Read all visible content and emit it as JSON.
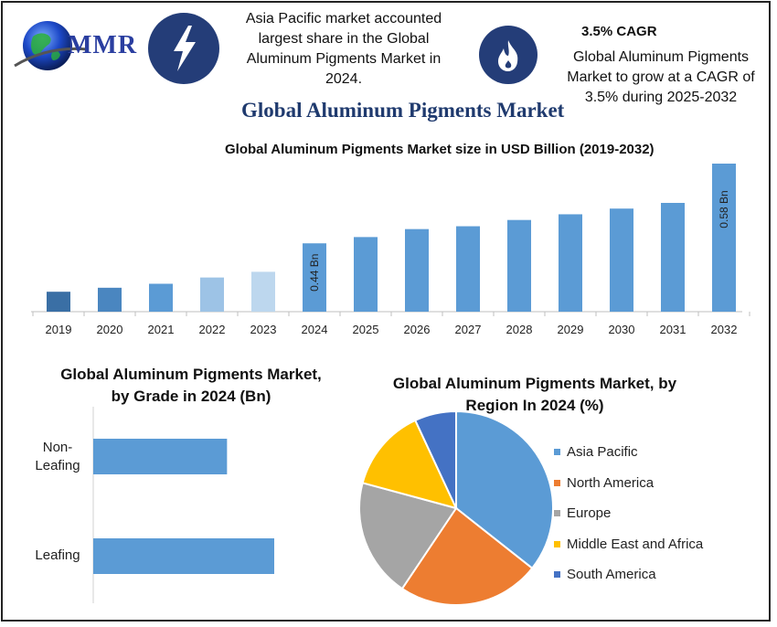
{
  "header": {
    "logo_text": "MMR",
    "info1": "Asia Pacific market accounted largest share in the Global Aluminum Pigments Market in 2024.",
    "cagr_title": "3.5% CAGR",
    "info2": "Global Aluminum Pigments Market to grow at a CAGR of 3.5% during 2025-2032",
    "main_title": "Global Aluminum Pigments Market",
    "icons": [
      "lightning-icon",
      "flame-icon"
    ],
    "accent_color": "#243d78"
  },
  "chart_data": [
    {
      "type": "bar",
      "title": "Global Aluminum Pigments Market size in USD Billion (2019-2032)",
      "categories": [
        "2019",
        "2020",
        "2021",
        "2022",
        "2023",
        "2024",
        "2025",
        "2026",
        "2027",
        "2028",
        "2029",
        "2030",
        "2031",
        "2032"
      ],
      "values": [
        0.355,
        0.362,
        0.369,
        0.38,
        0.39,
        0.44,
        0.451,
        0.465,
        0.47,
        0.481,
        0.491,
        0.501,
        0.511,
        0.58
      ],
      "data_labels": {
        "5": "0.44 Bn",
        "13": "0.58 Bn"
      },
      "colors": [
        "#3a6fa5",
        "#4a86c0",
        "#5b9bd5",
        "#9dc3e6",
        "#bdd7ee",
        "#5b9bd5",
        "#5b9bd5",
        "#5b9bd5",
        "#5b9bd5",
        "#5b9bd5",
        "#5b9bd5",
        "#5b9bd5",
        "#5b9bd5",
        "#5b9bd5"
      ],
      "ylim": [
        0.32,
        0.58
      ],
      "grid": false,
      "xlabel": "",
      "ylabel": ""
    },
    {
      "type": "bar",
      "orientation": "horizontal",
      "title": "Global Aluminum Pigments Market, by Grade in 2024 (Bn)",
      "categories": [
        "Non-Leafing",
        "Leafing"
      ],
      "category_lines": [
        [
          "Non-",
          "Leafing"
        ],
        [
          "Leafing"
        ]
      ],
      "values": [
        0.17,
        0.23
      ],
      "xlim": [
        0,
        0.23
      ],
      "color": "#5b9bd5",
      "grid": false
    },
    {
      "type": "pie",
      "title": "Global Aluminum Pigments Market, by Region In 2024 (%)",
      "labels": [
        "Asia Pacific",
        "North America",
        "Europe",
        "Middle East and Africa",
        "South America"
      ],
      "values": [
        36,
        24,
        20,
        14,
        7
      ],
      "colors": [
        "#5b9bd5",
        "#ed7d31",
        "#a5a5a5",
        "#ffc000",
        "#4472c4"
      ],
      "legend": "right"
    }
  ]
}
